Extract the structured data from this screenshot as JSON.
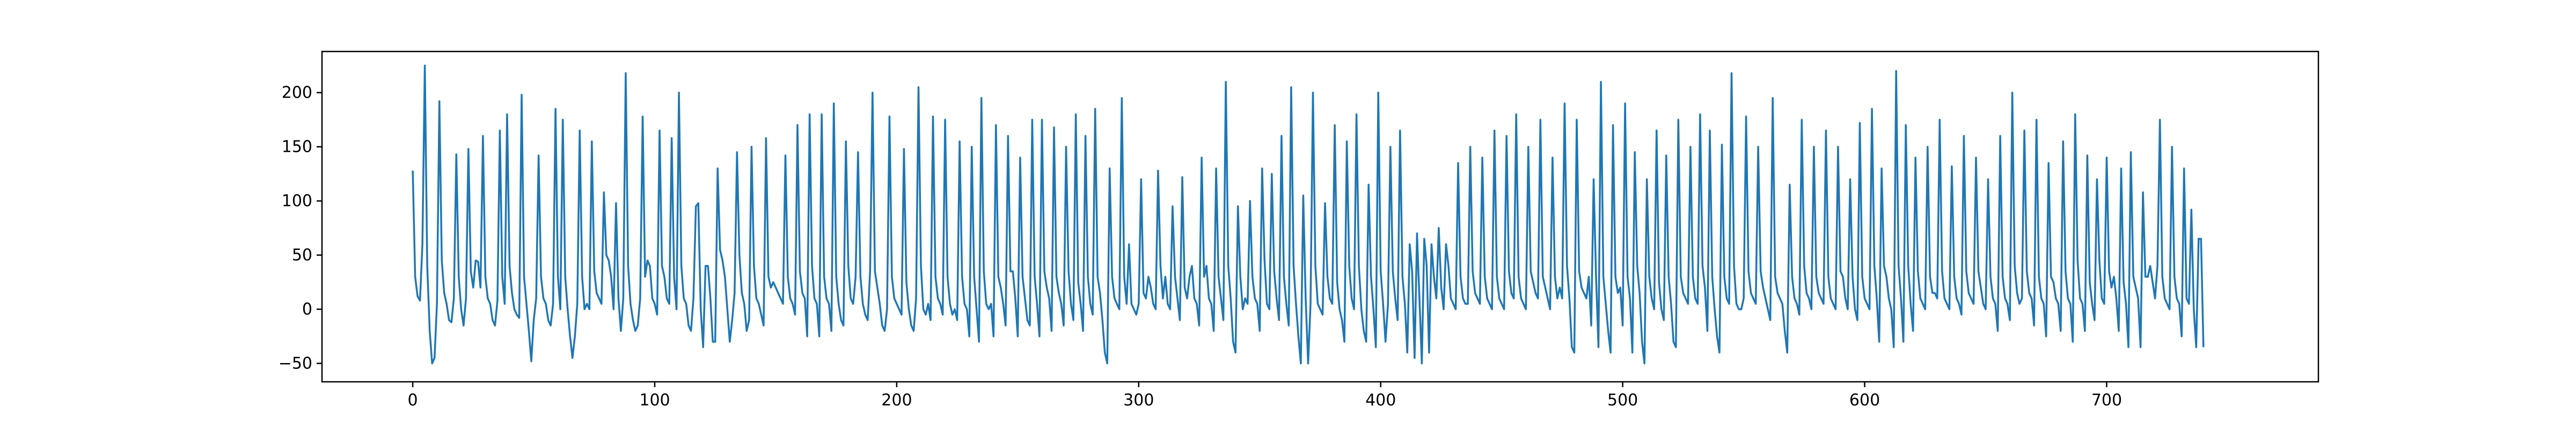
{
  "chart_data": {
    "type": "line",
    "title": "",
    "xlabel": "",
    "ylabel": "",
    "xlim": [
      -37.5,
      787.5
    ],
    "ylim": [
      -67,
      238
    ],
    "xticks": [
      0,
      100,
      200,
      300,
      400,
      500,
      600,
      700
    ],
    "xtick_labels": [
      "0",
      "100",
      "200",
      "300",
      "400",
      "500",
      "600",
      "700"
    ],
    "yticks": [
      -50,
      0,
      50,
      100,
      150,
      200
    ],
    "ytick_labels": [
      "−50",
      "0",
      "50",
      "100",
      "150",
      "200"
    ],
    "grid": false,
    "legend": "none",
    "colors": {
      "line": "#1f77b4",
      "axes": "#000000",
      "background": "#ffffff"
    },
    "series": [
      {
        "x_start": 0,
        "x_step": 1,
        "values": [
          128,
          30,
          12,
          8,
          60,
          225,
          40,
          -20,
          -50,
          -45,
          5,
          192,
          45,
          15,
          5,
          -10,
          -12,
          10,
          143,
          30,
          0,
          -15,
          10,
          148,
          35,
          20,
          45,
          44,
          20,
          160,
          30,
          10,
          5,
          -10,
          -15,
          8,
          165,
          30,
          5,
          180,
          40,
          15,
          0,
          -5,
          -8,
          198,
          30,
          5,
          -20,
          -48,
          -10,
          10,
          142,
          30,
          10,
          5,
          -10,
          -15,
          5,
          185,
          30,
          0,
          175,
          30,
          0,
          -25,
          -45,
          -25,
          5,
          165,
          30,
          0,
          5,
          0,
          155,
          35,
          15,
          10,
          5,
          108,
          50,
          45,
          30,
          0,
          98,
          10,
          -20,
          10,
          218,
          40,
          5,
          -10,
          -20,
          -15,
          10,
          178,
          30,
          45,
          40,
          10,
          5,
          -5,
          165,
          40,
          30,
          10,
          5,
          158,
          30,
          0,
          200,
          40,
          10,
          5,
          -15,
          -20,
          10,
          95,
          98,
          0,
          -35,
          40,
          40,
          10,
          -30,
          -30,
          130,
          55,
          45,
          30,
          0,
          -30,
          -10,
          15,
          145,
          50,
          15,
          5,
          -20,
          -10,
          150,
          40,
          10,
          5,
          -5,
          -15,
          158,
          30,
          20,
          25,
          20,
          15,
          10,
          5,
          142,
          30,
          10,
          5,
          -5,
          170,
          35,
          15,
          10,
          -25,
          180,
          40,
          10,
          5,
          -25,
          180,
          30,
          10,
          5,
          -20,
          190,
          30,
          5,
          -10,
          -15,
          155,
          40,
          10,
          5,
          30,
          145,
          30,
          5,
          -5,
          -10,
          35,
          200,
          35,
          20,
          5,
          -15,
          -20,
          0,
          178,
          30,
          10,
          5,
          0,
          -5,
          148,
          25,
          0,
          -15,
          -20,
          10,
          205,
          40,
          0,
          -5,
          5,
          -10,
          178,
          30,
          10,
          5,
          -5,
          175,
          30,
          5,
          -5,
          0,
          -10,
          155,
          30,
          5,
          0,
          -25,
          150,
          30,
          0,
          -30,
          195,
          35,
          5,
          0,
          5,
          -25,
          170,
          30,
          20,
          5,
          -15,
          160,
          35,
          35,
          10,
          -25,
          140,
          30,
          10,
          -10,
          -15,
          175,
          30,
          5,
          -25,
          175,
          35,
          20,
          10,
          -20,
          168,
          30,
          15,
          5,
          -15,
          150,
          35,
          5,
          -10,
          180,
          25,
          5,
          -20,
          160,
          30,
          5,
          -5,
          185,
          30,
          15,
          -10,
          -40,
          -50,
          130,
          30,
          10,
          5,
          0,
          195,
          30,
          5,
          60,
          5,
          0,
          -5,
          5,
          120,
          15,
          10,
          30,
          20,
          5,
          0,
          128,
          40,
          10,
          30,
          5,
          0,
          95,
          30,
          10,
          -10,
          122,
          20,
          10,
          30,
          40,
          10,
          5,
          -15,
          140,
          30,
          40,
          10,
          5,
          -20,
          130,
          30,
          10,
          -10,
          210,
          40,
          10,
          -30,
          -40,
          95,
          30,
          0,
          10,
          5,
          100,
          30,
          10,
          5,
          -20,
          130,
          45,
          5,
          0,
          125,
          35,
          10,
          -10,
          160,
          30,
          5,
          -15,
          205,
          40,
          5,
          -25,
          -50,
          105,
          10,
          -50,
          5,
          200,
          40,
          5,
          0,
          -5,
          98,
          30,
          10,
          5,
          170,
          25,
          0,
          -10,
          -30,
          155,
          40,
          10,
          0,
          180,
          40,
          0,
          -20,
          -30,
          115,
          30,
          0,
          -35,
          200,
          35,
          5,
          -30,
          5,
          150,
          35,
          10,
          -10,
          165,
          30,
          5,
          -40,
          60,
          35,
          -45,
          70,
          10,
          -50,
          65,
          40,
          -40,
          60,
          30,
          10,
          75,
          20,
          0,
          60,
          40,
          10,
          5,
          0,
          135,
          30,
          10,
          5,
          5,
          150,
          35,
          15,
          10,
          5,
          140,
          30,
          10,
          5,
          0,
          165,
          30,
          10,
          5,
          0,
          160,
          35,
          15,
          10,
          180,
          30,
          10,
          5,
          0,
          150,
          35,
          25,
          15,
          10,
          175,
          30,
          20,
          10,
          0,
          140,
          30,
          10,
          20,
          10,
          190,
          40,
          10,
          -35,
          -40,
          175,
          35,
          20,
          15,
          10,
          30,
          -15,
          120,
          30,
          -35,
          210,
          30,
          5,
          -20,
          -40,
          170,
          30,
          15,
          20,
          -15,
          190,
          30,
          10,
          -40,
          145,
          40,
          15,
          -30,
          -50,
          120,
          30,
          10,
          0,
          165,
          25,
          0,
          -10,
          142,
          30,
          5,
          -30,
          -35,
          175,
          30,
          15,
          10,
          5,
          150,
          30,
          10,
          5,
          180,
          40,
          20,
          -20,
          165,
          30,
          0,
          -25,
          -40,
          152,
          30,
          10,
          5,
          218,
          40,
          5,
          0,
          0,
          10,
          178,
          35,
          15,
          10,
          5,
          150,
          35,
          20,
          10,
          0,
          -10,
          195,
          30,
          15,
          10,
          5,
          -20,
          -40,
          115,
          30,
          10,
          5,
          -5,
          175,
          40,
          15,
          10,
          0,
          150,
          30,
          15,
          10,
          5,
          165,
          30,
          10,
          5,
          0,
          150,
          35,
          30,
          10,
          0,
          120,
          30,
          0,
          -10,
          172,
          30,
          10,
          5,
          0,
          185,
          40,
          10,
          -30,
          130,
          40,
          30,
          10,
          0,
          -35,
          220,
          40,
          10,
          -30,
          170,
          40,
          5,
          -20,
          140,
          35,
          10,
          5,
          0,
          150,
          30,
          15,
          15,
          10,
          175,
          35,
          10,
          5,
          0,
          132,
          30,
          10,
          5,
          -5,
          160,
          35,
          15,
          10,
          5,
          140,
          35,
          20,
          5,
          0,
          120,
          30,
          10,
          5,
          -20,
          160,
          30,
          10,
          5,
          -10,
          200,
          40,
          15,
          5,
          10,
          165,
          35,
          15,
          10,
          -15,
          175,
          30,
          10,
          5,
          -25,
          135,
          30,
          25,
          10,
          5,
          -20,
          155,
          35,
          10,
          5,
          -30,
          180,
          45,
          10,
          5,
          -20,
          142,
          25,
          5,
          -10,
          120,
          45,
          10,
          5,
          140,
          35,
          20,
          30,
          10,
          -20,
          130,
          25,
          5,
          -35,
          145,
          30,
          20,
          10,
          -35,
          108,
          30,
          30,
          40,
          25,
          10,
          40,
          175,
          30,
          10,
          5,
          0,
          150,
          30,
          10,
          5,
          -25,
          130,
          10,
          5,
          92,
          0,
          -35,
          65,
          65,
          -35
        ]
      }
    ]
  }
}
